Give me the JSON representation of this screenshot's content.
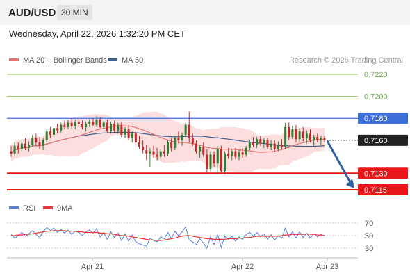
{
  "header": {
    "symbol": "AUD/USD",
    "timeframe": "30 MIN",
    "datetime": "Wednesday, April 22, 2026 1:32:20 PM CET"
  },
  "legend": {
    "ma20_label": "MA 20 + Bollinger Bands",
    "ma50_label": "MA 50",
    "credit": "Research © 2026 Trading Central",
    "rsi_label": "RSI",
    "ma9_label": "9MA"
  },
  "colors": {
    "up": "#2e7d32",
    "down": "#c62828",
    "ma20": "#e57373",
    "ma50": "#3f5f8f",
    "band": "#fbd3d3",
    "resistance_green": "#8bc34a",
    "resistance_blue": "#3d6fd8",
    "support_red": "#e81818",
    "arrow": "#2f5f9e",
    "rsi": "#5b7fd6",
    "rsi_ma": "#e53935"
  },
  "chart_data": {
    "type": "candlestick",
    "x_tick_labels": [
      "Apr 21",
      "Apr 22",
      "Apr 23"
    ],
    "y_range": [
      0.7105,
      0.723
    ],
    "levels": [
      {
        "value": 0.722,
        "label": "0.7220",
        "kind": "resistance-minor"
      },
      {
        "value": 0.72,
        "label": "0.7200",
        "kind": "resistance-minor"
      },
      {
        "value": 0.718,
        "label": "0.7180",
        "kind": "resistance"
      },
      {
        "value": 0.713,
        "label": "0.7130",
        "kind": "support"
      },
      {
        "value": 0.7115,
        "label": "0.7115",
        "kind": "support"
      }
    ],
    "current_price": {
      "value": 0.716,
      "label": "0.7160"
    },
    "forecast_arrow": {
      "from": 0.716,
      "to": 0.7115
    },
    "ohlc": [
      [
        0.715,
        0.7155,
        0.7145,
        0.7148
      ],
      [
        0.7148,
        0.7158,
        0.7146,
        0.7155
      ],
      [
        0.7155,
        0.7158,
        0.7148,
        0.7152
      ],
      [
        0.7152,
        0.716,
        0.715,
        0.7157
      ],
      [
        0.7157,
        0.7162,
        0.7151,
        0.7153
      ],
      [
        0.7153,
        0.7159,
        0.715,
        0.7156
      ],
      [
        0.7156,
        0.7165,
        0.7154,
        0.7162
      ],
      [
        0.7162,
        0.7166,
        0.7155,
        0.7158
      ],
      [
        0.7158,
        0.7163,
        0.7152,
        0.7155
      ],
      [
        0.7155,
        0.7162,
        0.7151,
        0.716
      ],
      [
        0.716,
        0.717,
        0.7158,
        0.7168
      ],
      [
        0.7168,
        0.7172,
        0.7162,
        0.7165
      ],
      [
        0.7165,
        0.7173,
        0.7163,
        0.7171
      ],
      [
        0.7171,
        0.7175,
        0.7166,
        0.7169
      ],
      [
        0.7169,
        0.7176,
        0.7167,
        0.7174
      ],
      [
        0.7174,
        0.7178,
        0.717,
        0.7172
      ],
      [
        0.7172,
        0.7179,
        0.717,
        0.7176
      ],
      [
        0.7176,
        0.718,
        0.7171,
        0.7173
      ],
      [
        0.7173,
        0.7179,
        0.717,
        0.7177
      ],
      [
        0.7177,
        0.718,
        0.7172,
        0.7175
      ],
      [
        0.7175,
        0.7178,
        0.717,
        0.7172
      ],
      [
        0.7172,
        0.7177,
        0.7168,
        0.7175
      ],
      [
        0.7175,
        0.7179,
        0.7172,
        0.7177
      ],
      [
        0.7177,
        0.718,
        0.7173,
        0.7174
      ],
      [
        0.7174,
        0.7182,
        0.7172,
        0.7179
      ],
      [
        0.7179,
        0.7181,
        0.7171,
        0.7172
      ],
      [
        0.7172,
        0.7178,
        0.717,
        0.7176
      ],
      [
        0.7176,
        0.7179,
        0.7167,
        0.7168
      ],
      [
        0.7168,
        0.7177,
        0.7166,
        0.7175
      ],
      [
        0.7175,
        0.7178,
        0.7167,
        0.7169
      ],
      [
        0.7169,
        0.7176,
        0.7166,
        0.7174
      ],
      [
        0.7174,
        0.7177,
        0.7163,
        0.7165
      ],
      [
        0.7165,
        0.7172,
        0.7162,
        0.717
      ],
      [
        0.717,
        0.7174,
        0.716,
        0.7162
      ],
      [
        0.7162,
        0.7168,
        0.7158,
        0.7166
      ],
      [
        0.7166,
        0.7169,
        0.7156,
        0.7158
      ],
      [
        0.7158,
        0.7164,
        0.7152,
        0.7154
      ],
      [
        0.7154,
        0.716,
        0.7148,
        0.7151
      ],
      [
        0.7151,
        0.7156,
        0.7142,
        0.7148
      ],
      [
        0.7148,
        0.7153,
        0.7136,
        0.715
      ],
      [
        0.715,
        0.7155,
        0.7144,
        0.7147
      ],
      [
        0.7147,
        0.7153,
        0.7142,
        0.7145
      ],
      [
        0.7145,
        0.7152,
        0.7143,
        0.715
      ],
      [
        0.715,
        0.7156,
        0.7145,
        0.7148
      ],
      [
        0.7148,
        0.716,
        0.7146,
        0.7158
      ],
      [
        0.7158,
        0.7162,
        0.715,
        0.7153
      ],
      [
        0.7153,
        0.7164,
        0.7151,
        0.7162
      ],
      [
        0.7162,
        0.7168,
        0.7157,
        0.716
      ],
      [
        0.716,
        0.7167,
        0.7155,
        0.7165
      ],
      [
        0.7165,
        0.7176,
        0.7163,
        0.7174
      ],
      [
        0.7174,
        0.7186,
        0.7158,
        0.7162
      ],
      [
        0.7162,
        0.7166,
        0.7155,
        0.7157
      ],
      [
        0.7157,
        0.716,
        0.7148,
        0.715
      ],
      [
        0.715,
        0.7156,
        0.7144,
        0.7154
      ],
      [
        0.7154,
        0.7158,
        0.7145,
        0.7147
      ],
      [
        0.7147,
        0.7152,
        0.713,
        0.7134
      ],
      [
        0.7134,
        0.715,
        0.7132,
        0.7147
      ],
      [
        0.7147,
        0.715,
        0.7136,
        0.7139
      ],
      [
        0.7139,
        0.7155,
        0.713,
        0.7152
      ],
      [
        0.7152,
        0.7155,
        0.713,
        0.7132
      ],
      [
        0.7132,
        0.715,
        0.7129,
        0.7148
      ],
      [
        0.7148,
        0.7153,
        0.7143,
        0.7146
      ],
      [
        0.7146,
        0.7152,
        0.7142,
        0.715
      ],
      [
        0.715,
        0.7153,
        0.7143,
        0.7145
      ],
      [
        0.7145,
        0.7151,
        0.7142,
        0.7149
      ],
      [
        0.7149,
        0.7153,
        0.7144,
        0.7147
      ],
      [
        0.7147,
        0.7155,
        0.7145,
        0.7153
      ],
      [
        0.7153,
        0.716,
        0.7151,
        0.7158
      ],
      [
        0.7158,
        0.7163,
        0.7154,
        0.7156
      ],
      [
        0.7156,
        0.7163,
        0.7153,
        0.7161
      ],
      [
        0.7161,
        0.7164,
        0.7155,
        0.7157
      ],
      [
        0.7157,
        0.7162,
        0.7153,
        0.716
      ],
      [
        0.716,
        0.7162,
        0.7152,
        0.7154
      ],
      [
        0.7154,
        0.716,
        0.7151,
        0.7157
      ],
      [
        0.7157,
        0.716,
        0.715,
        0.7152
      ],
      [
        0.7152,
        0.7159,
        0.715,
        0.7156
      ],
      [
        0.7156,
        0.7161,
        0.7152,
        0.7154
      ],
      [
        0.7154,
        0.7176,
        0.7152,
        0.7172
      ],
      [
        0.7172,
        0.7176,
        0.716,
        0.7163
      ],
      [
        0.7163,
        0.7173,
        0.7161,
        0.717
      ],
      [
        0.717,
        0.7174,
        0.7158,
        0.7161
      ],
      [
        0.7161,
        0.7171,
        0.7159,
        0.7168
      ],
      [
        0.7168,
        0.7172,
        0.7159,
        0.7162
      ],
      [
        0.7162,
        0.7169,
        0.7157,
        0.7166
      ],
      [
        0.7166,
        0.717,
        0.7158,
        0.716
      ],
      [
        0.716,
        0.7165,
        0.7155,
        0.7163
      ],
      [
        0.7163,
        0.7166,
        0.7158,
        0.716
      ],
      [
        0.716,
        0.7164,
        0.7156,
        0.7162
      ],
      [
        0.7162,
        0.7164,
        0.7158,
        0.716
      ]
    ],
    "rsi_axis": {
      "ticks": [
        70,
        50,
        30
      ],
      "range": [
        20,
        80
      ]
    },
    "rsi": [
      52,
      46,
      50,
      55,
      49,
      53,
      58,
      52,
      47,
      56,
      63,
      58,
      62,
      55,
      60,
      54,
      59,
      52,
      57,
      55,
      50,
      56,
      59,
      54,
      61,
      48,
      55,
      44,
      56,
      47,
      54,
      42,
      53,
      41,
      51,
      40,
      37,
      35,
      33,
      46,
      42,
      40,
      48,
      45,
      55,
      45,
      57,
      50,
      56,
      64,
      43,
      40,
      36,
      45,
      38,
      30,
      48,
      36,
      52,
      31,
      49,
      44,
      49,
      41,
      48,
      44,
      52,
      55,
      49,
      55,
      48,
      53,
      44,
      51,
      43,
      50,
      46,
      62,
      48,
      56,
      46,
      56,
      47,
      54,
      46,
      53,
      48,
      52,
      49
    ],
    "rsi_ma": [
      50,
      50,
      51,
      51,
      52,
      52,
      53,
      54,
      55,
      56,
      57,
      57,
      58,
      58,
      58,
      58,
      57,
      57,
      57,
      56,
      56,
      55,
      55,
      55,
      55,
      54,
      54,
      53,
      53,
      52,
      51,
      50,
      50,
      49,
      48,
      47,
      46,
      45,
      44,
      43,
      43,
      42,
      42,
      43,
      44,
      45,
      46,
      48,
      49,
      50,
      50,
      49,
      48,
      47,
      46,
      45,
      45,
      44,
      44,
      44,
      44,
      45,
      45,
      45,
      46,
      46,
      47,
      47,
      48,
      49,
      49,
      49,
      49,
      49,
      49,
      49,
      50,
      51,
      51,
      52,
      52,
      52,
      52,
      53,
      52,
      52,
      51,
      51,
      50
    ]
  }
}
